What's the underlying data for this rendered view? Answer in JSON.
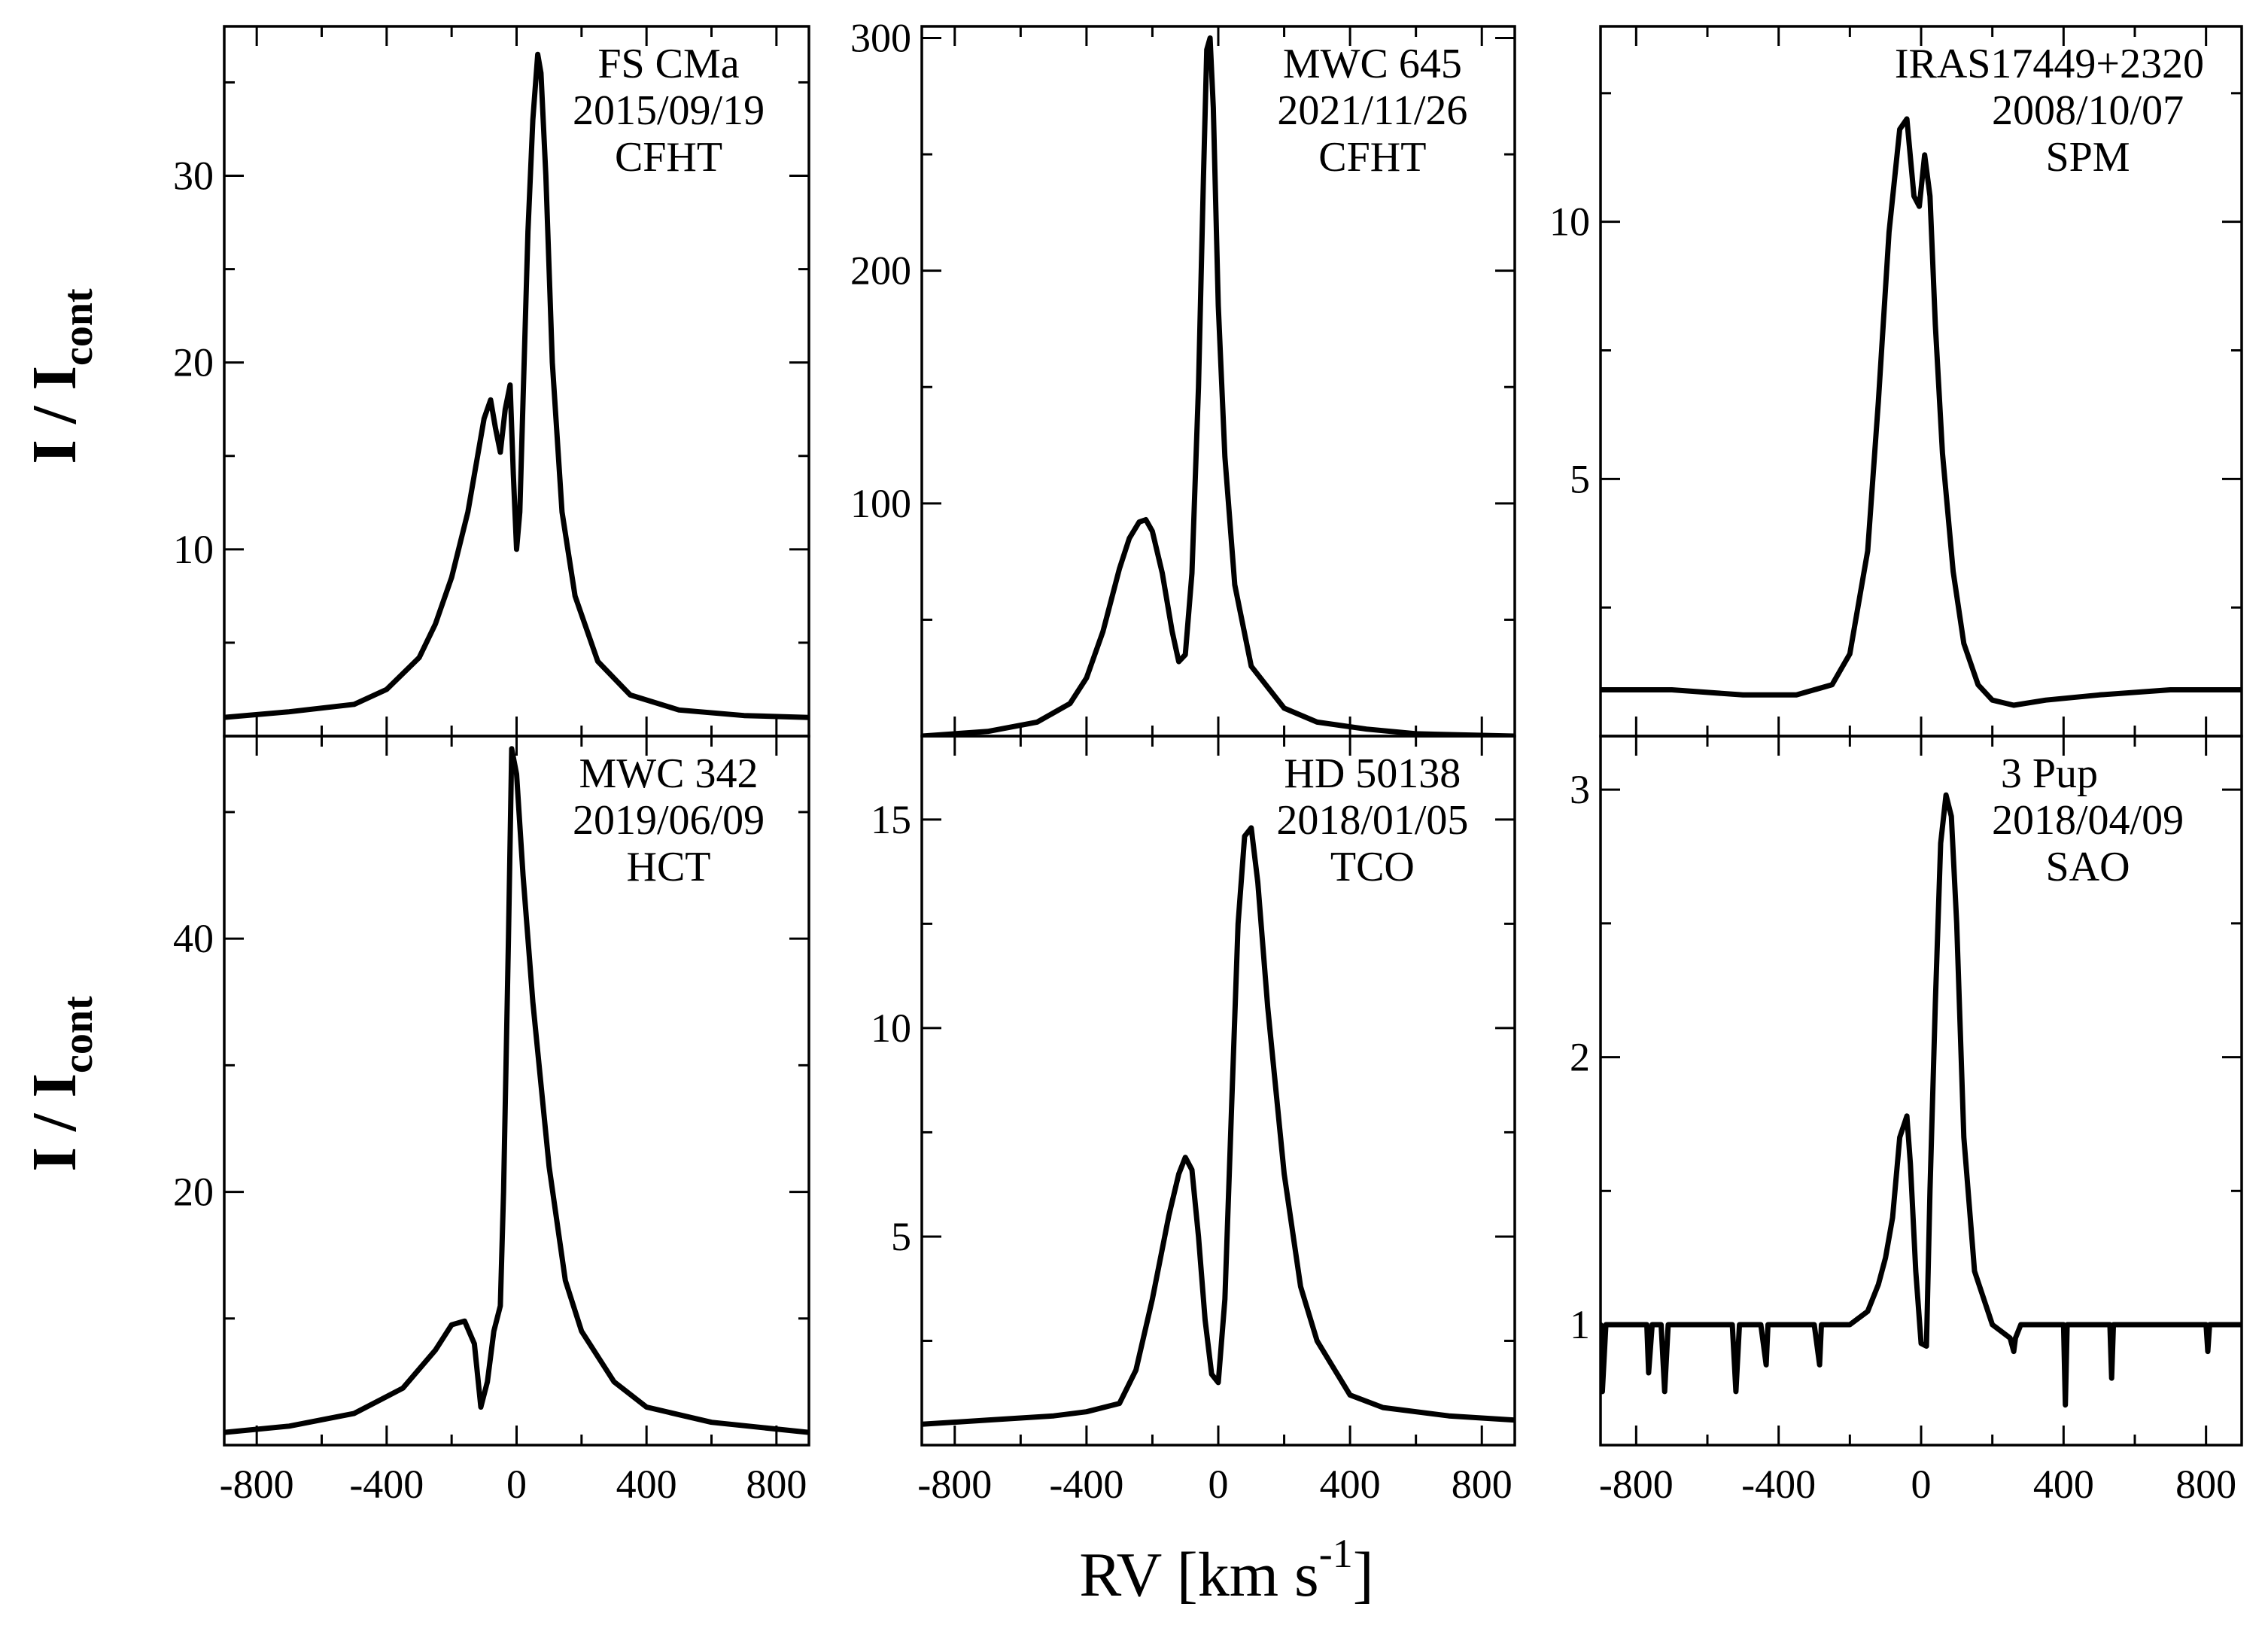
{
  "figure": {
    "xlabel": "RV [km s",
    "xlabel_sup": "-1",
    "xlabel_tail": "]",
    "ylabel_main": "I / I",
    "ylabel_sub": "cont"
  },
  "chart_data": [
    {
      "type": "line",
      "star": "FS CMa",
      "date": "2015/09/19",
      "telescope": "CFHT",
      "xlim": [
        -900,
        900
      ],
      "ylim": [
        0,
        38
      ],
      "xticks": [
        -800,
        -400,
        0,
        400,
        800
      ],
      "yticks": [
        10,
        20,
        30
      ],
      "x": [
        -900,
        -700,
        -500,
        -400,
        -300,
        -250,
        -200,
        -150,
        -120,
        -100,
        -80,
        -65,
        -50,
        -35,
        -20,
        -10,
        0,
        10,
        20,
        35,
        50,
        65,
        75,
        90,
        110,
        140,
        180,
        250,
        350,
        500,
        700,
        900
      ],
      "y": [
        1.0,
        1.3,
        1.7,
        2.5,
        4.2,
        6.0,
        8.5,
        12.0,
        15.0,
        17.0,
        18.0,
        16.5,
        15.2,
        17.5,
        18.8,
        14.0,
        10.0,
        12.0,
        18.0,
        27.0,
        33.0,
        36.5,
        35.5,
        30.0,
        20.0,
        12.0,
        7.5,
        4.0,
        2.2,
        1.4,
        1.1,
        1.0
      ]
    },
    {
      "type": "line",
      "star": "MWC 645",
      "date": "2021/11/26",
      "telescope": "CFHT",
      "xlim": [
        -900,
        900
      ],
      "ylim": [
        0,
        305
      ],
      "xticks": [
        -800,
        -400,
        0,
        400,
        800
      ],
      "yticks": [
        100,
        200,
        300
      ],
      "x": [
        -900,
        -700,
        -550,
        -450,
        -400,
        -350,
        -300,
        -270,
        -240,
        -220,
        -200,
        -170,
        -140,
        -120,
        -100,
        -80,
        -60,
        -45,
        -35,
        -25,
        -15,
        0,
        20,
        50,
        100,
        200,
        300,
        450,
        600,
        900
      ],
      "y": [
        0,
        2,
        6,
        14,
        25,
        45,
        72,
        85,
        92,
        93,
        88,
        70,
        45,
        32,
        35,
        70,
        150,
        240,
        295,
        300,
        270,
        185,
        120,
        65,
        30,
        12,
        6,
        3,
        1,
        0
      ]
    },
    {
      "type": "line",
      "star": "IRAS17449+2320",
      "date": "2008/10/07",
      "telescope": "SPM",
      "xlim": [
        -900,
        900
      ],
      "ylim": [
        0,
        13.8
      ],
      "xticks": [
        -800,
        -400,
        0,
        400,
        800
      ],
      "yticks": [
        5,
        10
      ],
      "x": [
        -900,
        -700,
        -500,
        -350,
        -250,
        -200,
        -150,
        -120,
        -90,
        -60,
        -40,
        -20,
        -5,
        10,
        25,
        40,
        60,
        90,
        120,
        160,
        200,
        260,
        350,
        500,
        700,
        900
      ],
      "y": [
        0.9,
        0.9,
        0.8,
        0.8,
        1.0,
        1.6,
        3.6,
        6.5,
        9.8,
        11.8,
        12.0,
        10.5,
        10.3,
        11.3,
        10.5,
        8.0,
        5.5,
        3.2,
        1.8,
        1.0,
        0.7,
        0.6,
        0.7,
        0.8,
        0.9,
        0.9
      ]
    },
    {
      "type": "line",
      "star": "MWC 342",
      "date": "2019/06/09",
      "telescope": "HCT",
      "xlim": [
        -900,
        900
      ],
      "ylim": [
        0,
        56
      ],
      "xticks": [
        -800,
        -400,
        0,
        400,
        800
      ],
      "yticks": [
        20,
        40
      ],
      "x": [
        -900,
        -700,
        -500,
        -350,
        -250,
        -200,
        -160,
        -130,
        -110,
        -90,
        -70,
        -50,
        -40,
        -25,
        -15,
        0,
        20,
        50,
        100,
        150,
        200,
        300,
        400,
        600,
        900
      ],
      "y": [
        1.0,
        1.5,
        2.5,
        4.5,
        7.5,
        9.5,
        9.8,
        8.0,
        3.0,
        5.0,
        9.0,
        11.0,
        20.0,
        40.0,
        55.0,
        53.0,
        45.0,
        35.0,
        22.0,
        13.0,
        9.0,
        5.0,
        3.0,
        1.8,
        1.0
      ]
    },
    {
      "type": "line",
      "star": "HD 50138",
      "date": "2018/01/05",
      "telescope": "TCO",
      "xlim": [
        -900,
        900
      ],
      "ylim": [
        0,
        17
      ],
      "xticks": [
        -800,
        -400,
        0,
        400,
        800
      ],
      "yticks": [
        5,
        10,
        15
      ],
      "x": [
        -900,
        -700,
        -500,
        -400,
        -300,
        -250,
        -200,
        -150,
        -120,
        -100,
        -80,
        -60,
        -40,
        -20,
        0,
        20,
        40,
        60,
        80,
        100,
        120,
        150,
        200,
        250,
        300,
        400,
        500,
        700,
        900
      ],
      "y": [
        0.5,
        0.6,
        0.7,
        0.8,
        1.0,
        1.8,
        3.5,
        5.5,
        6.5,
        6.9,
        6.6,
        5.0,
        3.0,
        1.7,
        1.5,
        3.5,
        8.0,
        12.5,
        14.6,
        14.8,
        13.5,
        10.5,
        6.5,
        3.8,
        2.5,
        1.2,
        0.9,
        0.7,
        0.6
      ]
    },
    {
      "type": "line",
      "star": "3 Pup",
      "date": "2018/04/09",
      "telescope": "SAO",
      "xlim": [
        -900,
        900
      ],
      "ylim": [
        0.55,
        3.2
      ],
      "xticks": [
        -800,
        -400,
        0,
        400,
        800
      ],
      "yticks": [
        1,
        2,
        3
      ],
      "x": [
        -900,
        -895,
        -885,
        -860,
        -770,
        -765,
        -755,
        -730,
        -720,
        -710,
        -660,
        -600,
        -530,
        -520,
        -510,
        -450,
        -435,
        -430,
        -420,
        -360,
        -300,
        -285,
        -280,
        -270,
        -200,
        -150,
        -120,
        -100,
        -80,
        -60,
        -40,
        -30,
        -15,
        0,
        15,
        25,
        40,
        55,
        70,
        85,
        100,
        120,
        150,
        200,
        250,
        260,
        265,
        280,
        350,
        400,
        405,
        410,
        420,
        500,
        530,
        535,
        540,
        560,
        650,
        750,
        800,
        805,
        810,
        830,
        880,
        900
      ],
      "y": [
        1.0,
        0.75,
        1.0,
        1.0,
        1.0,
        0.82,
        1.0,
        1.0,
        0.75,
        1.0,
        1.0,
        1.0,
        1.0,
        0.75,
        1.0,
        1.0,
        0.85,
        1.0,
        1.0,
        1.0,
        1.0,
        0.85,
        1.0,
        1.0,
        1.0,
        1.05,
        1.15,
        1.25,
        1.4,
        1.7,
        1.78,
        1.6,
        1.2,
        0.93,
        0.92,
        1.5,
        2.2,
        2.8,
        2.98,
        2.9,
        2.5,
        1.7,
        1.2,
        1.0,
        0.95,
        0.9,
        0.95,
        1.0,
        1.0,
        1.0,
        0.7,
        1.0,
        1.0,
        1.0,
        1.0,
        0.8,
        1.0,
        1.0,
        1.0,
        1.0,
        1.0,
        0.9,
        1.0,
        1.0,
        1.0,
        1.0
      ]
    }
  ]
}
